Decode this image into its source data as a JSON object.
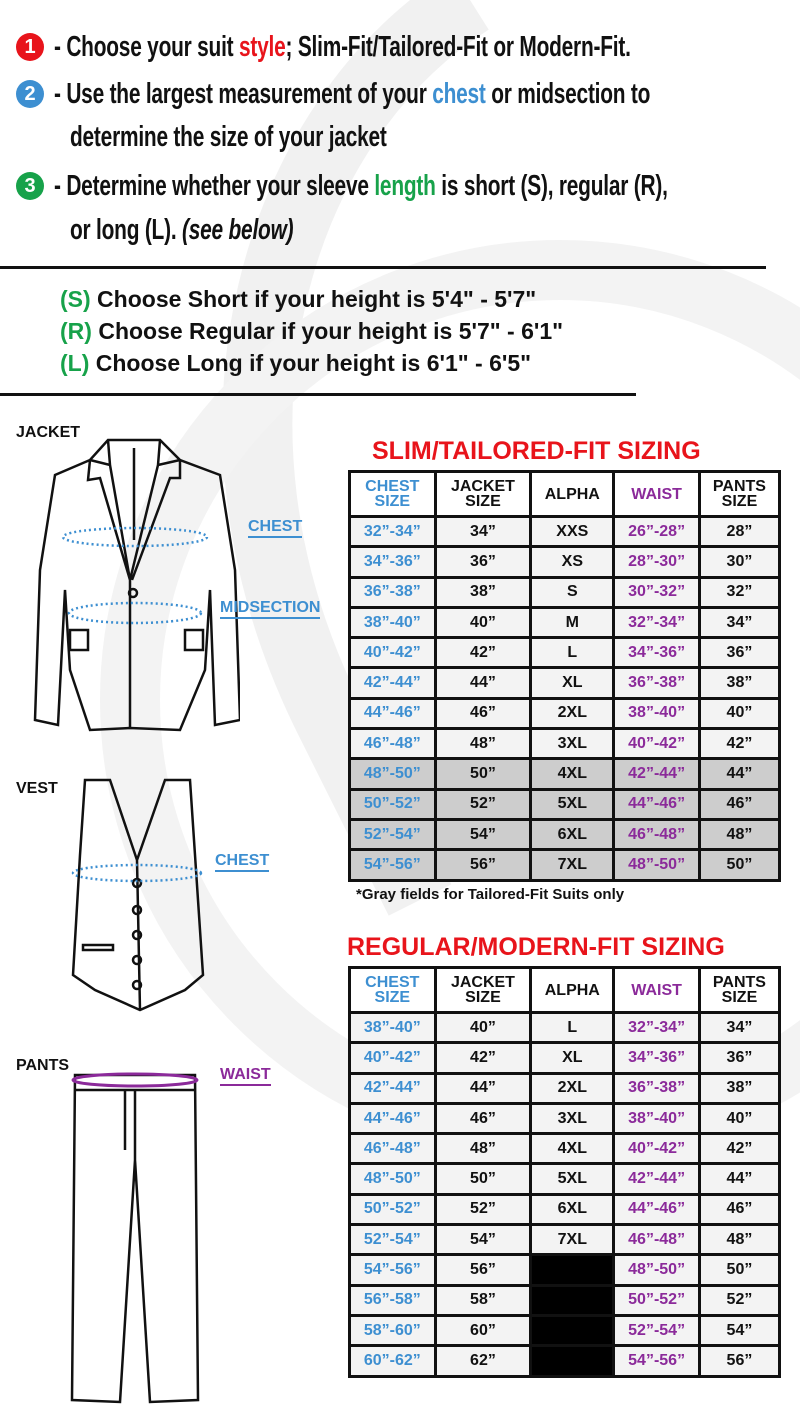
{
  "colors": {
    "red": "#e8141b",
    "blue": "#3d8fd1",
    "green": "#17a24a",
    "purple": "#8b2a9a",
    "gray_row": "#cdcdcd"
  },
  "steps": [
    {
      "num": "1",
      "pre": "- Choose your suit ",
      "key": "style",
      "post": "; Slim-Fit/Tailored-Fit or Modern-Fit."
    },
    {
      "num": "2",
      "pre": "- Use the largest measurement of your ",
      "key": "chest",
      "post": " or midsection to",
      "cont": "determine the size of your jacket"
    },
    {
      "num": "3",
      "pre": "- Determine whether your sleeve ",
      "key": "length",
      "post": " is short (S), regular (R),",
      "cont": "or long (L). ",
      "cont_italic": "(see below)"
    }
  ],
  "heights": [
    {
      "code": "(S)",
      "text": " Choose Short if your height is 5'4\" - 5'7\""
    },
    {
      "code": "(R)",
      "text": " Choose Regular if your height is  5'7\" - 6'1\""
    },
    {
      "code": "(L)",
      "text": " Choose Long if your height is  6'1\" - 6'5\""
    }
  ],
  "garments": {
    "jacket": "JACKET",
    "vest": "VEST",
    "pants": "PANTS",
    "chest": "CHEST",
    "midsection": "MIDSECTION",
    "vest_chest": "CHEST",
    "waist": "WAIST"
  },
  "headers": [
    "CHEST SIZE",
    "JACKET SIZE",
    "ALPHA",
    "WAIST",
    "PANTS SIZE"
  ],
  "slim": {
    "title": "SLIM/TAILORED-FIT SIZING",
    "note": "*Gray fields for Tailored-Fit Suits only",
    "rows": [
      [
        "32”-34”",
        "34”",
        "XXS",
        "26”-28”",
        "28”",
        false
      ],
      [
        "34”-36”",
        "36”",
        "XS",
        "28”-30”",
        "30”",
        false
      ],
      [
        "36”-38”",
        "38”",
        "S",
        "30”-32”",
        "32”",
        false
      ],
      [
        "38”-40”",
        "40”",
        "M",
        "32”-34”",
        "34”",
        false
      ],
      [
        "40”-42”",
        "42”",
        "L",
        "34”-36”",
        "36”",
        false
      ],
      [
        "42”-44”",
        "44”",
        "XL",
        "36”-38”",
        "38”",
        false
      ],
      [
        "44”-46”",
        "46”",
        "2XL",
        "38”-40”",
        "40”",
        false
      ],
      [
        "46”-48”",
        "48”",
        "3XL",
        "40”-42”",
        "42”",
        false
      ],
      [
        "48”-50”",
        "50”",
        "4XL",
        "42”-44”",
        "44”",
        true
      ],
      [
        "50”-52”",
        "52”",
        "5XL",
        "44”-46”",
        "46”",
        true
      ],
      [
        "52”-54”",
        "54”",
        "6XL",
        "46”-48”",
        "48”",
        true
      ],
      [
        "54”-56”",
        "56”",
        "7XL",
        "48”-50”",
        "50”",
        true
      ]
    ]
  },
  "regular": {
    "title": "REGULAR/MODERN-FIT SIZING",
    "rows": [
      [
        "38”-40”",
        "40”",
        "L",
        "32”-34”",
        "34”"
      ],
      [
        "40”-42”",
        "42”",
        "XL",
        "34”-36”",
        "36”"
      ],
      [
        "42”-44”",
        "44”",
        "2XL",
        "36”-38”",
        "38”"
      ],
      [
        "44”-46”",
        "46”",
        "3XL",
        "38”-40”",
        "40”"
      ],
      [
        "46”-48”",
        "48”",
        "4XL",
        "40”-42”",
        "42”"
      ],
      [
        "48”-50”",
        "50”",
        "5XL",
        "42”-44”",
        "44”"
      ],
      [
        "50”-52”",
        "52”",
        "6XL",
        "44”-46”",
        "46”"
      ],
      [
        "52”-54”",
        "54”",
        "7XL",
        "46”-48”",
        "48”"
      ],
      [
        "54”-56”",
        "56”",
        "",
        "48”-50”",
        "50”"
      ],
      [
        "56”-58”",
        "58”",
        "",
        "50”-52”",
        "52”"
      ],
      [
        "58”-60”",
        "60”",
        "",
        "52”-54”",
        "54”"
      ],
      [
        "60”-62”",
        "62”",
        "",
        "54”-56”",
        "56”"
      ]
    ]
  }
}
